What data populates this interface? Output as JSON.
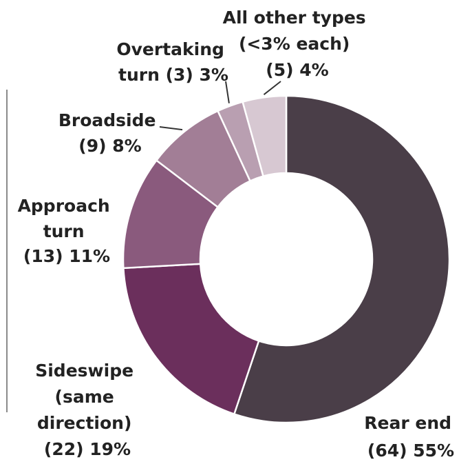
{
  "chart_data": {
    "type": "pie",
    "style": "donut",
    "title": "",
    "series": [
      {
        "name": "Rear end",
        "count": 64,
        "percent": 55,
        "color": "#4a3e48",
        "label_lines": [
          "Rear end",
          "(64) 55%"
        ]
      },
      {
        "name": "Sideswipe (same direction)",
        "count": 22,
        "percent": 19,
        "color": "#6b2f5c",
        "label_lines": [
          "Sideswipe",
          "(same",
          "direction)",
          "(22) 19%"
        ]
      },
      {
        "name": "Approach turn",
        "count": 13,
        "percent": 11,
        "color": "#8a5a7d",
        "label_lines": [
          "Approach",
          "turn",
          "(13) 11%"
        ]
      },
      {
        "name": "Broadside",
        "count": 9,
        "percent": 8,
        "color": "#a27e96",
        "label_lines": [
          "Broadside",
          "(9) 8%"
        ]
      },
      {
        "name": "Overtaking turn",
        "count": 3,
        "percent": 3,
        "color": "#b99fb1",
        "label_lines": [
          "Overtaking",
          "turn (3) 3%"
        ]
      },
      {
        "name": "All other types (<3% each)",
        "count": 5,
        "percent": 4,
        "color": "#d7c8d2",
        "label_lines": [
          "All other types",
          "(<3% each)",
          "(5) 4%"
        ]
      }
    ]
  }
}
